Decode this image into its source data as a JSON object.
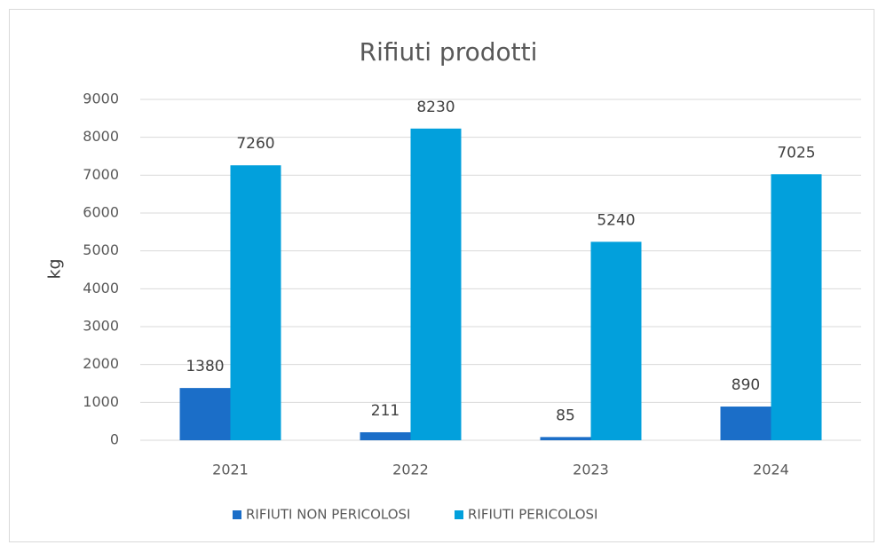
{
  "chart_data": {
    "type": "bar",
    "title": "Rifiuti prodotti",
    "y_label": "kg",
    "categories": [
      "2021",
      "2022",
      "2023",
      "2024"
    ],
    "series": [
      {
        "name": "RIFIUTI NON PERICOLOSI",
        "color": "#1b6ec8",
        "values": [
          1380,
          211,
          85,
          890
        ]
      },
      {
        "name": "RIFIUTI PERICOLOSI",
        "color": "#02a0dc",
        "values": [
          7260,
          8230,
          5240,
          7025
        ]
      }
    ],
    "ylim": [
      0,
      9000
    ],
    "yticks": [
      0,
      1000,
      2000,
      3000,
      4000,
      5000,
      6000,
      7000,
      8000,
      9000
    ],
    "grid": true,
    "legend": "bottom"
  }
}
